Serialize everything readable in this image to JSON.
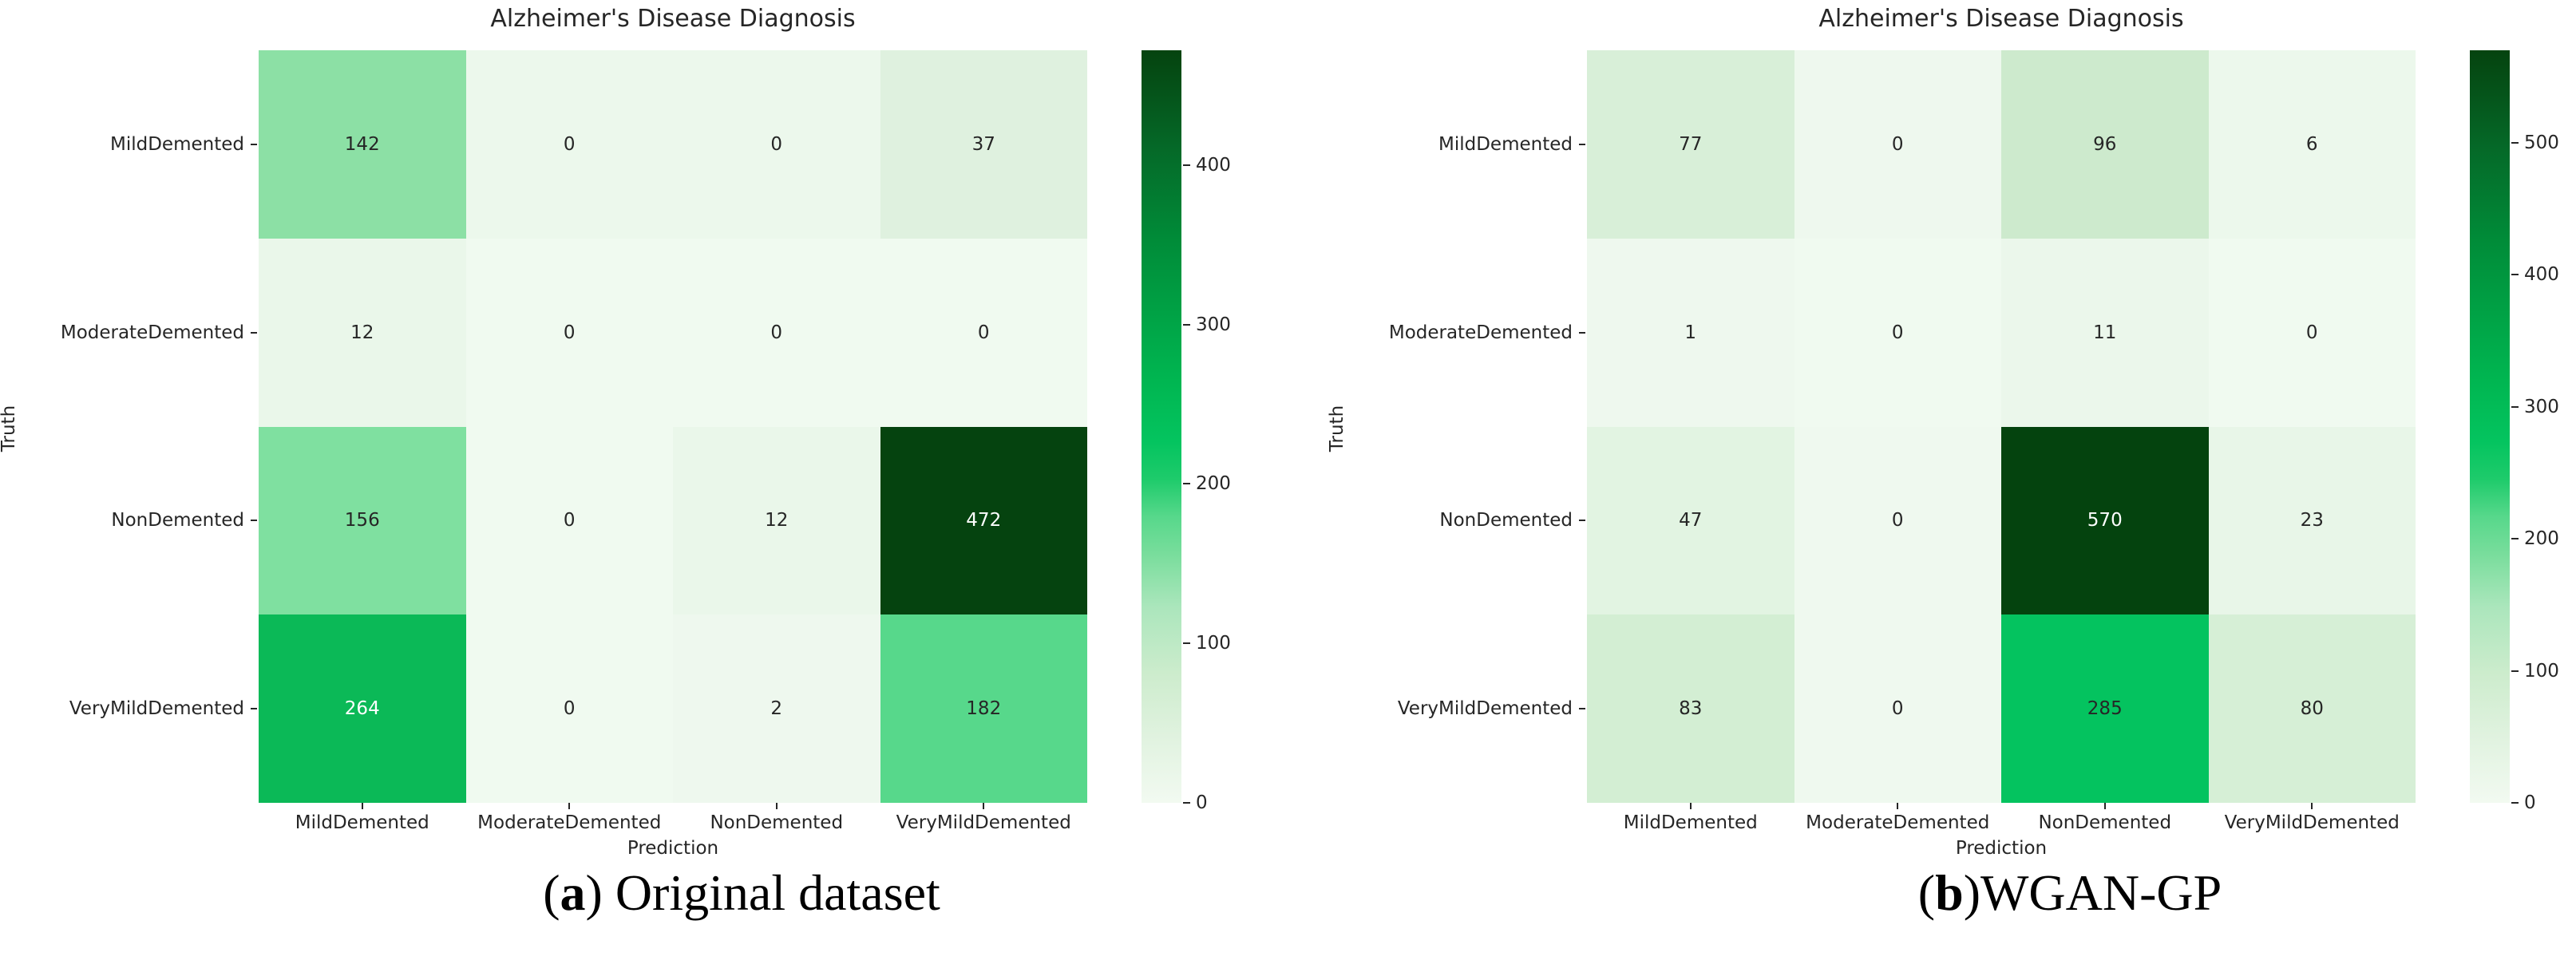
{
  "page": {
    "background": "#ffffff",
    "text_color": "#262626"
  },
  "chart_data": [
    {
      "type": "heatmap",
      "title": "Alzheimer's Disease Diagnosis",
      "xlabel": "Prediction",
      "ylabel": "Truth",
      "categories": [
        "MildDemented",
        "ModerateDemented",
        "NonDemented",
        "VeryMildDemented"
      ],
      "rows": [
        [
          142,
          0,
          0,
          37
        ],
        [
          12,
          0,
          0,
          0
        ],
        [
          156,
          0,
          12,
          472
        ],
        [
          264,
          0,
          2,
          182
        ]
      ],
      "vmin": 0,
      "vmax": 472,
      "colorbar_ticks": [
        0,
        100,
        200,
        300,
        400
      ],
      "cell_colors": [
        [
          "#8ce0a5",
          "#ecf8ec",
          "#ecf8ec",
          "#dff1df"
        ],
        [
          "#eaf7ea",
          "#f0faf0",
          "#f0faf0",
          "#f0faf0"
        ],
        [
          "#7fe0a0",
          "#f0faf0",
          "#eaf7ea",
          "#05430f"
        ],
        [
          "#0bb957",
          "#f0faf0",
          "#eef8ee",
          "#57d88b"
        ]
      ],
      "cell_text_colors": [
        [
          "#262626",
          "#262626",
          "#262626",
          "#262626"
        ],
        [
          "#262626",
          "#262626",
          "#262626",
          "#262626"
        ],
        [
          "#262626",
          "#262626",
          "#262626",
          "#ffffff"
        ],
        [
          "#ffffff",
          "#262626",
          "#262626",
          "#262626"
        ]
      ],
      "caption": {
        "open": "(",
        "letter": "a",
        "rest": ") Original dataset"
      }
    },
    {
      "type": "heatmap",
      "title": "Alzheimer's Disease Diagnosis",
      "xlabel": "Prediction",
      "ylabel": "Truth",
      "categories": [
        "MildDemented",
        "ModerateDemented",
        "NonDemented",
        "VeryMildDemented"
      ],
      "rows": [
        [
          77,
          0,
          96,
          6
        ],
        [
          1,
          0,
          11,
          0
        ],
        [
          47,
          0,
          570,
          23
        ],
        [
          83,
          0,
          285,
          80
        ]
      ],
      "vmin": 0,
      "vmax": 570,
      "colorbar_ticks": [
        0,
        100,
        200,
        300,
        400,
        500
      ],
      "cell_colors": [
        [
          "#d8efd8",
          "#eef8ee",
          "#cdeacd",
          "#ecf8ec"
        ],
        [
          "#eef8ee",
          "#f0faf0",
          "#ebf7eb",
          "#f0faf0"
        ],
        [
          "#e2f4e2",
          "#eff9ef",
          "#04430e",
          "#e8f6e8"
        ],
        [
          "#d3eed3",
          "#eff9ef",
          "#04c35f",
          "#d6efd6"
        ]
      ],
      "cell_text_colors": [
        [
          "#262626",
          "#262626",
          "#262626",
          "#262626"
        ],
        [
          "#262626",
          "#262626",
          "#262626",
          "#262626"
        ],
        [
          "#262626",
          "#262626",
          "#ffffff",
          "#262626"
        ],
        [
          "#262626",
          "#262626",
          "#262626",
          "#262626"
        ]
      ],
      "caption": {
        "open": "(",
        "letter": "b",
        "rest": ")WGAN-GP"
      }
    }
  ],
  "colorbar_gradient": [
    {
      "t": 0.0,
      "color": "#f2faf1"
    },
    {
      "t": 0.08,
      "color": "#e2f3e1"
    },
    {
      "t": 0.17,
      "color": "#cdeccd"
    },
    {
      "t": 0.26,
      "color": "#abe6bc"
    },
    {
      "t": 0.33,
      "color": "#79dd9c"
    },
    {
      "t": 0.38,
      "color": "#57d88b"
    },
    {
      "t": 0.43,
      "color": "#1ecb6b"
    },
    {
      "t": 0.48,
      "color": "#04c45f"
    },
    {
      "t": 0.56,
      "color": "#00b651"
    },
    {
      "t": 0.65,
      "color": "#00a245"
    },
    {
      "t": 0.75,
      "color": "#008b38"
    },
    {
      "t": 0.87,
      "color": "#056928"
    },
    {
      "t": 1.0,
      "color": "#05430f"
    }
  ]
}
